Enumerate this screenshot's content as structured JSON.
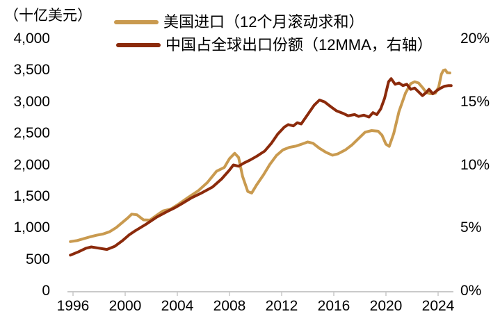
{
  "unit_label": "（十亿美元）",
  "colors": {
    "background": "#FFFFFF",
    "text": "#000000",
    "axis": "#C9C9C9",
    "us_imports": "#C99A4F",
    "china_share": "#8B2A0B"
  },
  "chart_data": {
    "type": "line",
    "title": "",
    "grid": false,
    "legend_position": "top",
    "x_axis": {
      "labels": [
        "1996",
        "2000",
        "2004",
        "2008",
        "2012",
        "2016",
        "2020",
        "2024"
      ],
      "tick_interval_years": 4,
      "min": 1995.6,
      "max": 2025.2
    },
    "left_axis": {
      "title": "（十亿美元）",
      "labels": [
        "4,000",
        "3,500",
        "3,000",
        "2,500",
        "2,000",
        "1,500",
        "1,000",
        "500",
        "0"
      ],
      "min": 0,
      "max": 4000
    },
    "right_axis": {
      "labels": [
        "20%",
        "15%",
        "10%",
        "5%",
        "0%"
      ],
      "min": 0,
      "max": 20
    },
    "series": [
      {
        "name": "美国进口（12个月滚动求和）",
        "axis": "left",
        "unit": "十亿美元",
        "color": "#C99A4F",
        "x": [
          1995.8,
          1996.3,
          1996.8,
          1997.3,
          1997.8,
          1998.3,
          1998.8,
          1999.3,
          1999.8,
          2000.2,
          2000.5,
          2000.9,
          2001.4,
          2001.9,
          2002.4,
          2002.9,
          2003.5,
          2004.0,
          2004.8,
          2005.6,
          2006.3,
          2007.0,
          2007.6,
          2008.0,
          2008.4,
          2008.7,
          2009.0,
          2009.4,
          2009.7,
          2010.1,
          2010.6,
          2011.1,
          2011.6,
          2012.1,
          2012.6,
          2013.1,
          2013.6,
          2014.0,
          2014.4,
          2014.9,
          2015.4,
          2015.9,
          2016.3,
          2016.9,
          2017.4,
          2017.9,
          2018.4,
          2018.9,
          2019.4,
          2019.7,
          2020.0,
          2020.25,
          2020.6,
          2021.0,
          2021.5,
          2021.9,
          2022.2,
          2022.5,
          2022.8,
          2023.1,
          2023.4,
          2023.8,
          2024.05,
          2024.25,
          2024.4,
          2024.55,
          2024.7,
          2024.9
        ],
        "y": [
          785,
          800,
          830,
          860,
          885,
          905,
          940,
          1005,
          1090,
          1160,
          1220,
          1210,
          1130,
          1125,
          1200,
          1270,
          1300,
          1365,
          1480,
          1590,
          1720,
          1900,
          1960,
          2100,
          2185,
          2120,
          1820,
          1580,
          1555,
          1690,
          1840,
          2010,
          2150,
          2240,
          2280,
          2300,
          2335,
          2365,
          2345,
          2265,
          2200,
          2155,
          2175,
          2240,
          2320,
          2420,
          2520,
          2545,
          2535,
          2470,
          2330,
          2295,
          2500,
          2850,
          3140,
          3290,
          3320,
          3300,
          3230,
          3150,
          3130,
          3140,
          3240,
          3440,
          3500,
          3510,
          3465,
          3460
        ]
      },
      {
        "name": "中国占全球出口份额（12MMA，右轴）",
        "axis": "right",
        "unit": "%",
        "color": "#8B2A0B",
        "x": [
          1995.8,
          1996.4,
          1997.0,
          1997.4,
          1998.0,
          1998.6,
          1999.2,
          1999.8,
          2000.3,
          2000.8,
          2001.6,
          2002.4,
          2003.2,
          2003.8,
          2004.3,
          2005.1,
          2005.9,
          2006.7,
          2007.4,
          2008.0,
          2008.3,
          2008.7,
          2009.1,
          2009.6,
          2010.1,
          2010.7,
          2011.2,
          2011.7,
          2012.2,
          2012.5,
          2012.9,
          2013.2,
          2013.5,
          2014.0,
          2014.5,
          2014.9,
          2015.3,
          2015.8,
          2016.2,
          2016.7,
          2017.1,
          2017.6,
          2017.9,
          2018.3,
          2018.7,
          2019.0,
          2019.3,
          2019.6,
          2019.9,
          2020.2,
          2020.4,
          2020.7,
          2021.0,
          2021.3,
          2021.6,
          2021.9,
          2022.2,
          2022.5,
          2022.8,
          2023.1,
          2023.3,
          2023.6,
          2023.9,
          2024.2,
          2024.5,
          2024.8,
          2025.0
        ],
        "y": [
          2.85,
          3.1,
          3.4,
          3.5,
          3.4,
          3.3,
          3.55,
          4.0,
          4.45,
          4.8,
          5.3,
          5.85,
          6.3,
          6.6,
          6.9,
          7.4,
          7.8,
          8.25,
          8.9,
          9.6,
          10.0,
          9.9,
          10.15,
          10.4,
          10.7,
          11.1,
          11.7,
          12.45,
          13.0,
          13.2,
          13.1,
          13.35,
          13.25,
          14.0,
          14.75,
          15.15,
          15.0,
          14.6,
          14.3,
          14.1,
          13.9,
          14.0,
          13.85,
          13.95,
          13.8,
          14.15,
          14.0,
          14.45,
          15.3,
          16.6,
          16.85,
          16.4,
          16.5,
          16.3,
          16.4,
          16.0,
          16.1,
          15.8,
          15.5,
          15.75,
          16.0,
          15.65,
          15.9,
          16.1,
          16.25,
          16.3,
          16.3
        ]
      }
    ]
  }
}
